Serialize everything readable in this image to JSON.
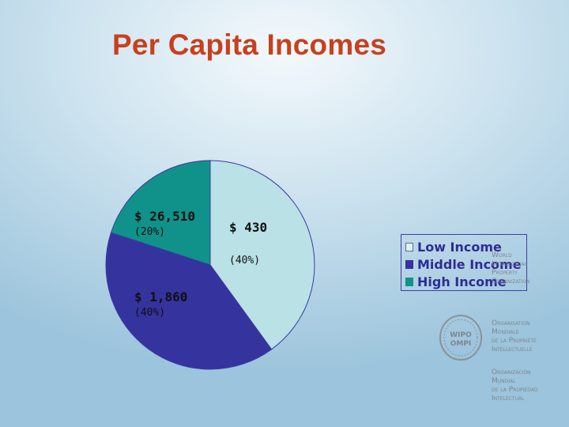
{
  "title": "Per Capita Incomes",
  "chart_data": {
    "type": "pie",
    "title": "Per Capita Incomes",
    "categories": [
      "Low Income",
      "Middle Income",
      "High Income"
    ],
    "values": [
      40,
      40,
      20
    ],
    "value_unit": "%",
    "income_labels": [
      "$ 430",
      "$ 1,860",
      "$ 26,510"
    ],
    "percent_labels": [
      "(40%)",
      "(40%)",
      "(20%)"
    ],
    "colors": [
      "#b9e1e6",
      "#35339e",
      "#10928a"
    ],
    "legend_position": "right"
  },
  "legend": {
    "items": [
      {
        "label": "Low Income",
        "color": "#b9e1e6"
      },
      {
        "label": "Middle Income",
        "color": "#35339e"
      },
      {
        "label": "High Income",
        "color": "#10928a"
      }
    ]
  },
  "logo": {
    "emblem_text": "WIPO OMPI",
    "english": "World\nIntellectual\nProperty\nOrganization",
    "french": "Organisation\nMondiale\nde la Propriété\nIntellectuelle",
    "spanish": "Organización\nMundial\nde la Propiedad\nIntelectual"
  }
}
